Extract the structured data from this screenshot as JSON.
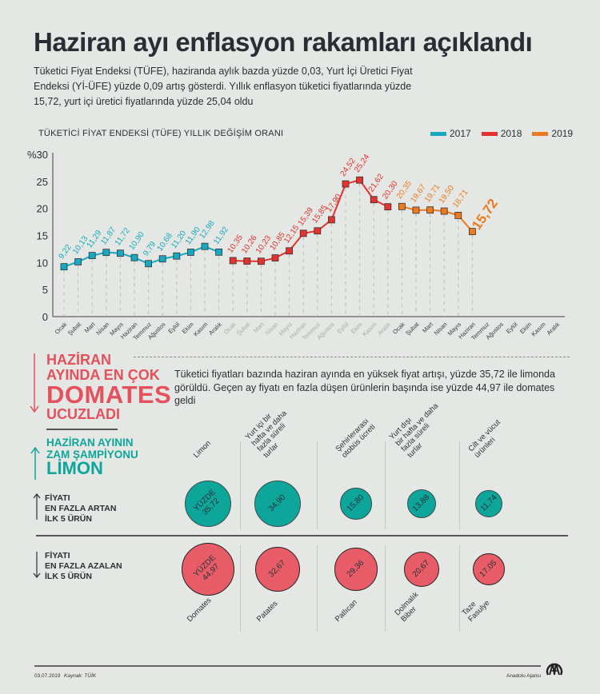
{
  "header": {
    "title": "Haziran ayı enflasyon rakamları açıklandı",
    "lead_lines": [
      "Tüketici Fiyat Endeksi (TÜFE), haziranda aylık bazda yüzde 0,03, Yurt İçi Üretici Fiyat",
      "Endeksi (Yİ-ÜFE) yüzde 0,09 artış gösterdi. Yıllık enflasyon tüketici fiyatlarında yüzde",
      "15,72, yurt içi üretici fiyatlarında yüzde 25,04 oldu"
    ]
  },
  "chart_data": {
    "type": "line",
    "title": "TÜKETİCİ FİYAT ENDEKSİ (TÜFE) YILLIK DEĞİŞİM ORANI",
    "ylabel": "%",
    "ylim": [
      0,
      30
    ],
    "yticks": [
      0,
      5,
      10,
      15,
      20,
      25,
      30
    ],
    "ytick_labels": [
      "0",
      "5",
      "10",
      "15",
      "20",
      "25",
      "%30"
    ],
    "months": [
      "Ocak",
      "Şubat",
      "Mart",
      "Nisan",
      "Mayıs",
      "Haziran",
      "Temmuz",
      "Ağustos",
      "Eylül",
      "Ekim",
      "Kasım",
      "Aralık"
    ],
    "legend_position": "top-right",
    "grid": "vertical dashed",
    "series": [
      {
        "name": "2017",
        "color": "#17a9c1",
        "values": [
          9.22,
          10.13,
          11.29,
          11.87,
          11.72,
          10.9,
          9.79,
          10.68,
          11.2,
          11.9,
          12.98,
          11.92
        ],
        "labels": [
          "9,22",
          "10,13",
          "11,29",
          "11,87",
          "11,72",
          "10,90",
          "9,79",
          "10,68",
          "11,20",
          "11,90",
          "12,98",
          "11,92"
        ]
      },
      {
        "name": "2018",
        "color": "#e5322f",
        "values": [
          10.35,
          10.26,
          10.23,
          10.85,
          12.15,
          15.39,
          15.85,
          17.9,
          24.52,
          25.24,
          21.62,
          20.3
        ],
        "labels": [
          "10,35",
          "10,26",
          "10,23",
          "10,85",
          "12,15",
          "15,39",
          "15,85",
          "17,90",
          "24,52",
          "25,24",
          "21,62",
          "20,30"
        ]
      },
      {
        "name": "2019",
        "color": "#ee7a1f",
        "values": [
          20.35,
          19.67,
          19.71,
          19.5,
          18.71,
          15.72
        ],
        "labels": [
          "20,35",
          "19,67",
          "19,71",
          "19,50",
          "18,71",
          "15,72"
        ]
      }
    ]
  },
  "highlight": {
    "red_lines": [
      "HAZİRAN",
      "AYINDA EN ÇOK",
      "DOMATES",
      "UCUZLADI"
    ],
    "teal_lines": [
      "HAZİRAN AYININ",
      "ZAM ŞAMPİYONU",
      "LİMON"
    ],
    "description": "Tüketici fiyatları bazında haziran ayında en yüksek fiyat artışı, yüzde 35,72 ile limonda görüldü. Geçen ay fiyatı en fazla düşen ürünlerin başında ise yüzde 44,97 ile domates geldi",
    "colors": {
      "red": "#e5505d",
      "teal": "#0ea59a"
    }
  },
  "products": {
    "increase_label": [
      "FİYATI",
      "EN FAZLA ARTAN",
      "İLK 5 ÜRÜN"
    ],
    "decrease_label": [
      "FİYATI",
      "EN FAZLA AZALAN",
      "İLK 5 ÜRÜN"
    ],
    "increase": [
      {
        "name": "Limon",
        "value": 35.72,
        "label": "YÜZDE\n35,72"
      },
      {
        "name": "Yurt içi bir\nhafta ve daha\nfazla süreli\nturlar",
        "value": 34.9,
        "label": "34,90"
      },
      {
        "name": "Şehirlerarası\notobüs ücreti",
        "value": 15.8,
        "label": "15,80"
      },
      {
        "name": "Yurt dışı\nbir hafta ve daha\nfazla süreli\nturlar",
        "value": 13.88,
        "label": "13,88"
      },
      {
        "name": "Cilt ve vücut\nürünleri",
        "value": 11.74,
        "label": "11,74"
      }
    ],
    "decrease": [
      {
        "name": "Domates",
        "value": 44.97,
        "label": "YÜZDE\n44,97"
      },
      {
        "name": "Patates",
        "value": 32.67,
        "label": "32,67"
      },
      {
        "name": "Patlıcan",
        "value": 29.36,
        "label": "29,36"
      },
      {
        "name": "Dolmalık\nBiber",
        "value": 20.67,
        "label": "20,67"
      },
      {
        "name": "Taze\nFasulye",
        "value": 17.05,
        "label": "17,05"
      }
    ]
  },
  "footer": {
    "date": "03.07.2019",
    "source": "Kaynak: TÜİK",
    "agency": "Anadolu Ajansı"
  }
}
